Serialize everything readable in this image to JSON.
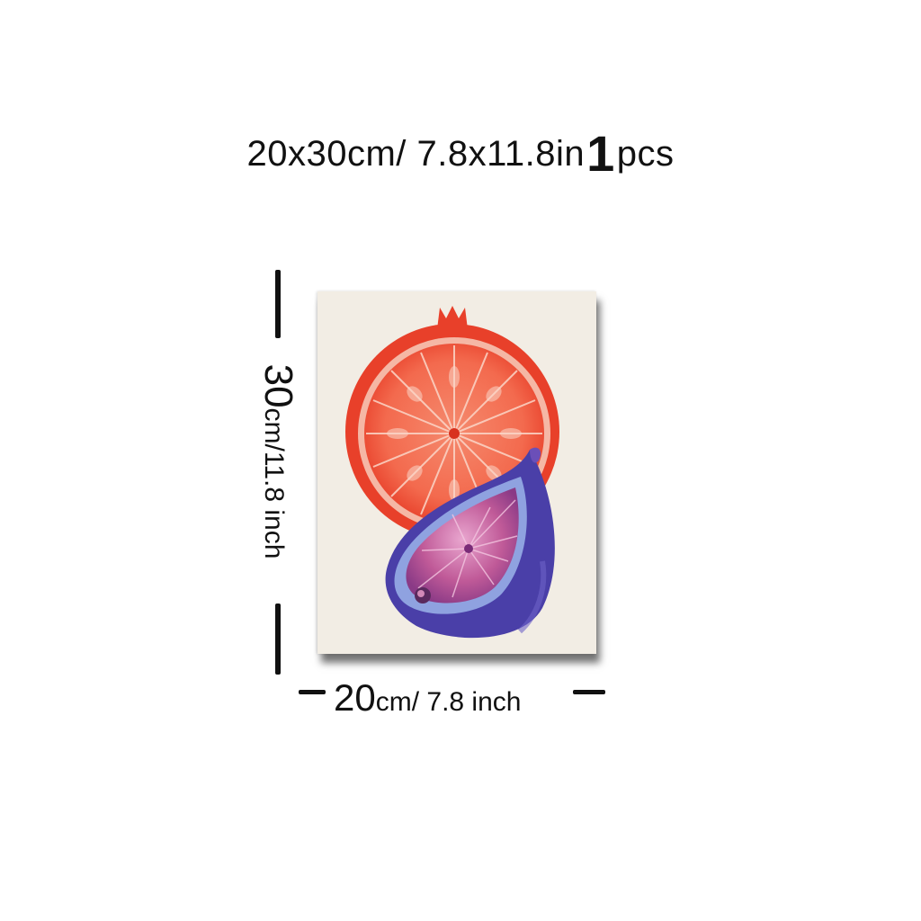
{
  "headline": {
    "size": "20x30cm/ 7.8x11.8in",
    "quantity": "1",
    "unit": "pcs"
  },
  "height_dim": {
    "number": "30",
    "unit": "cm/11.8 inch"
  },
  "width_dim": {
    "number": "20",
    "unit": "cm/ 7.8 inch"
  },
  "artwork": {
    "subject": [
      "pomegranate-half",
      "fig-half"
    ],
    "colors": {
      "background": "#f2ede4",
      "pomegranate": "#e8402a",
      "pomegranate_flesh": "#f36a4e",
      "fig_skin": "#4a3fa8",
      "fig_rim": "#8fa2e0",
      "fig_flesh": "#c05a98"
    }
  }
}
